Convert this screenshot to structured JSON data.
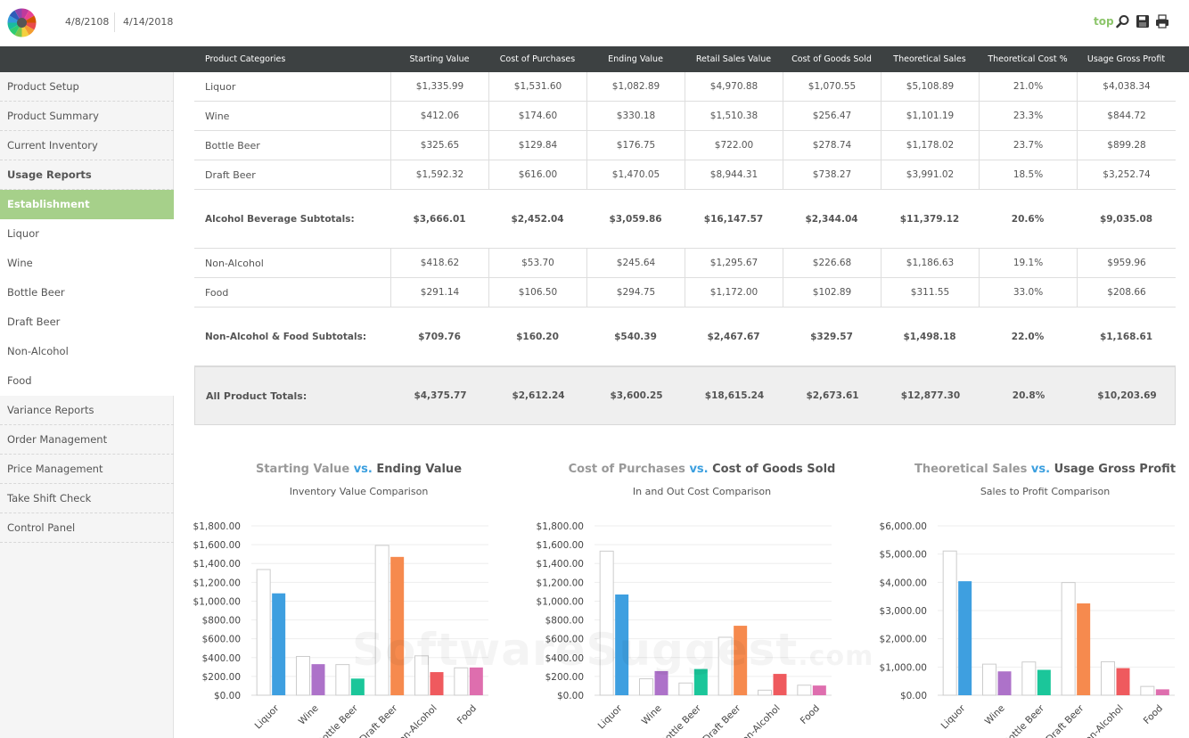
{
  "header": {
    "date_start": "4/8/2108",
    "date_end": "4/14/2018",
    "top_link": "top",
    "icons": [
      "search-icon",
      "save-icon",
      "print-icon"
    ]
  },
  "table": {
    "columns": [
      "Product Categories",
      "Starting Value",
      "Cost of Purchases",
      "Ending Value",
      "Retail Sales Value",
      "Cost of Goods Sold",
      "Theoretical Sales",
      "Theoretical Cost %",
      "Usage Gross Profit"
    ],
    "rows": [
      {
        "kind": "normal",
        "cells": [
          "Liquor",
          "$1,335.99",
          "$1,531.60",
          "$1,082.89",
          "$4,970.88",
          "$1,070.55",
          "$5,108.89",
          "21.0%",
          "$4,038.34"
        ]
      },
      {
        "kind": "normal",
        "cells": [
          "Wine",
          "$412.06",
          "$174.60",
          "$330.18",
          "$1,510.38",
          "$256.47",
          "$1,101.19",
          "23.3%",
          "$844.72"
        ]
      },
      {
        "kind": "normal",
        "cells": [
          "Bottle Beer",
          "$325.65",
          "$129.84",
          "$176.75",
          "$722.00",
          "$278.74",
          "$1,178.02",
          "23.7%",
          "$899.28"
        ]
      },
      {
        "kind": "normal",
        "cells": [
          "Draft Beer",
          "$1,592.32",
          "$616.00",
          "$1,470.05",
          "$8,944.31",
          "$738.27",
          "$3,991.02",
          "18.5%",
          "$3,252.74"
        ]
      },
      {
        "kind": "subtotal",
        "cells": [
          "Alcohol Beverage Subtotals:",
          "$3,666.01",
          "$2,452.04",
          "$3,059.86",
          "$16,147.57",
          "$2,344.04",
          "$11,379.12",
          "20.6%",
          "$9,035.08"
        ]
      },
      {
        "kind": "normal",
        "cells": [
          "Non-Alcohol",
          "$418.62",
          "$53.70",
          "$245.64",
          "$1,295.67",
          "$226.68",
          "$1,186.63",
          "19.1%",
          "$959.96"
        ]
      },
      {
        "kind": "normal",
        "cells": [
          "Food",
          "$291.14",
          "$106.50",
          "$294.75",
          "$1,172.00",
          "$102.89",
          "$311.55",
          "33.0%",
          "$208.66"
        ]
      },
      {
        "kind": "subtotal",
        "cells": [
          "Non-Alcohol & Food Subtotals:",
          "$709.76",
          "$160.20",
          "$540.39",
          "$2,467.67",
          "$329.57",
          "$1,498.18",
          "22.0%",
          "$1,168.61"
        ]
      },
      {
        "kind": "total",
        "cells": [
          "All Product Totals:",
          "$4,375.77",
          "$2,612.24",
          "$3,600.25",
          "$18,615.24",
          "$2,673.61",
          "$12,877.30",
          "20.8%",
          "$10,203.69"
        ]
      }
    ]
  },
  "sidebar": {
    "items": [
      {
        "label": "Product Setup",
        "style": "normal"
      },
      {
        "label": "Product Summary",
        "style": "normal"
      },
      {
        "label": "Current Inventory",
        "style": "normal"
      },
      {
        "label": "Usage Reports",
        "style": "bold"
      },
      {
        "label": "Establishment",
        "style": "active"
      },
      {
        "label": "Liquor",
        "style": "sub"
      },
      {
        "label": "Wine",
        "style": "sub"
      },
      {
        "label": "Bottle Beer",
        "style": "sub"
      },
      {
        "label": "Draft Beer",
        "style": "sub"
      },
      {
        "label": "Non-Alcohol",
        "style": "sub"
      },
      {
        "label": "Food",
        "style": "sub"
      },
      {
        "label": "Variance Reports",
        "style": "normal"
      },
      {
        "label": "Order Management",
        "style": "normal"
      },
      {
        "label": "Price Management",
        "style": "normal"
      },
      {
        "label": "Take Shift Check",
        "style": "normal"
      },
      {
        "label": "Control Panel",
        "style": "normal"
      }
    ]
  },
  "watermark": {
    "main": "SoftwareSuggest",
    "suffix": ".com"
  },
  "colors": {
    "header_bg": "#3d4142",
    "active_green": "#a6d08a",
    "vs_blue": "#3b9fdf",
    "category_colors": [
      "#3e9fe0",
      "#ad72c9",
      "#1bc69a",
      "#f68a4e",
      "#ef5a5e",
      "#de6eae"
    ]
  },
  "chart_data": [
    {
      "type": "bar",
      "title_part1": "Starting Value",
      "title_vs": "vs.",
      "title_part2": "Ending Value",
      "subtitle": "Inventory Value Comparison",
      "categories": [
        "Liquor",
        "Wine",
        "Bottle Beer",
        "Draft Beer",
        "Non-Alcohol",
        "Food"
      ],
      "series": [
        {
          "name": "Starting Value",
          "values": [
            1335.99,
            412.06,
            325.65,
            1592.32,
            418.62,
            291.14
          ]
        },
        {
          "name": "Ending Value",
          "values": [
            1082.89,
            330.18,
            176.75,
            1470.05,
            245.64,
            294.75
          ]
        }
      ],
      "yticks": [
        "$0.00",
        "$200.00",
        "$400.00",
        "$600.00",
        "$800.00",
        "$1,000.00",
        "$1,200.00",
        "$1,400.00",
        "$1,600.00",
        "$1,800.00"
      ],
      "ylim": [
        0,
        1800
      ],
      "grid": true
    },
    {
      "type": "bar",
      "title_part1": "Cost of Purchases",
      "title_vs": "vs.",
      "title_part2": "Cost of Goods Sold",
      "subtitle": "In and Out Cost Comparison",
      "categories": [
        "Liquor",
        "Wine",
        "Bottle Beer",
        "Draft Beer",
        "Non-Alcohol",
        "Food"
      ],
      "series": [
        {
          "name": "Cost of Purchases",
          "values": [
            1531.6,
            174.6,
            129.84,
            616.0,
            53.7,
            106.5
          ]
        },
        {
          "name": "Cost of Goods Sold",
          "values": [
            1070.55,
            256.47,
            278.74,
            738.27,
            226.68,
            102.89
          ]
        }
      ],
      "yticks": [
        "$0.00",
        "$200.00",
        "$400.00",
        "$600.00",
        "$800.00",
        "$1,000.00",
        "$1,200.00",
        "$1,400.00",
        "$1,600.00",
        "$1,800.00"
      ],
      "ylim": [
        0,
        1800
      ],
      "grid": true
    },
    {
      "type": "bar",
      "title_part1": "Theoretical Sales",
      "title_vs": "vs.",
      "title_part2": "Usage Gross Profit",
      "subtitle": "Sales to Profit Comparison",
      "categories": [
        "Liquor",
        "Wine",
        "Bottle Beer",
        "Draft Beer",
        "Non-Alcohol",
        "Food"
      ],
      "series": [
        {
          "name": "Theoretical Sales",
          "values": [
            5108.89,
            1101.19,
            1178.02,
            3991.02,
            1186.63,
            311.55
          ]
        },
        {
          "name": "Usage Gross Profit",
          "values": [
            4038.34,
            844.72,
            899.28,
            3252.74,
            959.96,
            208.66
          ]
        }
      ],
      "yticks": [
        "$0.00",
        "$1,000.00",
        "$2,000.00",
        "$3,000.00",
        "$4,000.00",
        "$5,000.00",
        "$6,000.00"
      ],
      "ylim": [
        0,
        6000
      ],
      "grid": true
    }
  ]
}
